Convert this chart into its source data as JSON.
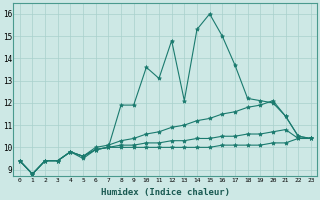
{
  "xlabel": "Humidex (Indice chaleur)",
  "xlim": [
    -0.5,
    23.5
  ],
  "ylim": [
    8.7,
    16.5
  ],
  "xticks": [
    0,
    1,
    2,
    3,
    4,
    5,
    6,
    7,
    8,
    9,
    10,
    11,
    12,
    13,
    14,
    15,
    16,
    17,
    18,
    19,
    20,
    21,
    22,
    23
  ],
  "yticks": [
    9,
    10,
    11,
    12,
    13,
    14,
    15,
    16
  ],
  "line_color": "#1a7a6e",
  "bg_color": "#cde8e5",
  "grid_color": "#a8d0cc",
  "lines": [
    {
      "x": [
        0,
        1,
        2,
        3,
        4,
        5,
        6,
        7,
        8,
        9,
        10,
        11,
        12,
        13,
        14,
        15,
        16,
        17,
        18,
        19,
        20,
        21,
        22,
        23
      ],
      "y": [
        9.4,
        8.8,
        9.4,
        9.4,
        9.8,
        9.5,
        9.9,
        10.0,
        11.9,
        11.9,
        13.6,
        13.1,
        14.8,
        12.1,
        15.3,
        16.0,
        15.0,
        13.7,
        12.2,
        12.1,
        12.0,
        11.4,
        10.5,
        10.4
      ]
    },
    {
      "x": [
        0,
        1,
        2,
        3,
        4,
        5,
        6,
        7,
        8,
        9,
        10,
        11,
        12,
        13,
        14,
        15,
        16,
        17,
        18,
        19,
        20,
        21,
        22,
        23
      ],
      "y": [
        9.4,
        8.8,
        9.4,
        9.4,
        9.8,
        9.6,
        10.0,
        10.1,
        10.3,
        10.4,
        10.6,
        10.7,
        10.9,
        11.0,
        11.2,
        11.3,
        11.5,
        11.6,
        11.8,
        11.9,
        12.1,
        11.4,
        10.5,
        10.4
      ]
    },
    {
      "x": [
        0,
        1,
        2,
        3,
        4,
        5,
        6,
        7,
        8,
        9,
        10,
        11,
        12,
        13,
        14,
        15,
        16,
        17,
        18,
        19,
        20,
        21,
        22,
        23
      ],
      "y": [
        9.4,
        8.8,
        9.4,
        9.4,
        9.8,
        9.6,
        9.9,
        10.0,
        10.1,
        10.1,
        10.2,
        10.2,
        10.3,
        10.3,
        10.4,
        10.4,
        10.5,
        10.5,
        10.6,
        10.6,
        10.7,
        10.8,
        10.4,
        10.4
      ]
    },
    {
      "x": [
        0,
        1,
        2,
        3,
        4,
        5,
        6,
        7,
        8,
        9,
        10,
        11,
        12,
        13,
        14,
        15,
        16,
        17,
        18,
        19,
        20,
        21,
        22,
        23
      ],
      "y": [
        9.4,
        8.8,
        9.4,
        9.4,
        9.8,
        9.6,
        9.9,
        10.0,
        10.0,
        10.0,
        10.0,
        10.0,
        10.0,
        10.0,
        10.0,
        10.0,
        10.1,
        10.1,
        10.1,
        10.1,
        10.2,
        10.2,
        10.4,
        10.4
      ]
    }
  ]
}
